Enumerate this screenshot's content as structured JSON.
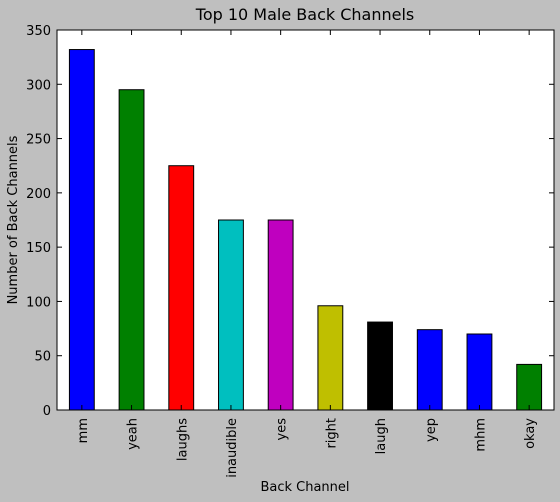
{
  "chart_data": {
    "type": "bar",
    "title": "Top 10 Male Back Channels",
    "xlabel": "Back Channel",
    "ylabel": "Number of Back Channels",
    "categories": [
      "mm",
      "yeah",
      "laughs",
      "inaudible",
      "yes",
      "right",
      "laugh",
      "yep",
      "mhm",
      "okay"
    ],
    "values": [
      332,
      295,
      225,
      175,
      175,
      96,
      81,
      74,
      70,
      42
    ],
    "ylim": [
      0,
      350
    ],
    "yticks": [
      0,
      50,
      100,
      150,
      200,
      250,
      300,
      350
    ],
    "bar_colors": [
      "#0000ff",
      "#008000",
      "#ff0000",
      "#00bfbf",
      "#bf00bf",
      "#bfbf00",
      "#000000",
      "#0000ff",
      "#0000ff",
      "#008000"
    ],
    "plot_background": "#ffffff",
    "figure_background": "#bfbfbf",
    "grid": false,
    "legend": "none"
  }
}
